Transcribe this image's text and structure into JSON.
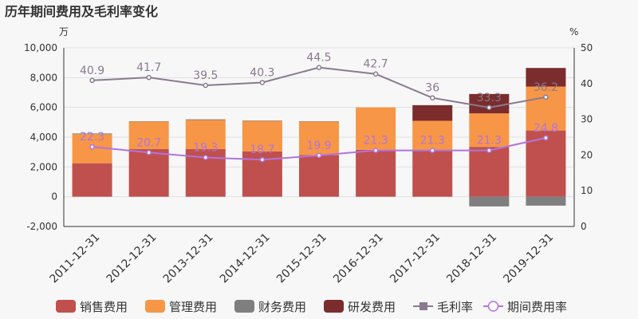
{
  "chart_data": {
    "type": "bar",
    "title": "历年期间费用及毛利率变化",
    "left_unit": "万",
    "right_unit": "%",
    "categories": [
      "2011-12-31",
      "2012-12-31",
      "2013-12-31",
      "2014-12-31",
      "2015-12-31",
      "2016-12-31",
      "2017-12-31",
      "2018-12-31",
      "2019-12-31"
    ],
    "ylim_left": [
      -2000,
      10000
    ],
    "yticks_left": [
      "-2,000",
      "0",
      "2,000",
      "4,000",
      "6,000",
      "8,000",
      "10,000"
    ],
    "ylim_right": [
      0,
      50
    ],
    "yticks_right": [
      "0",
      "10",
      "20",
      "30",
      "40",
      "50"
    ],
    "bar_series": [
      {
        "name": "销售费用",
        "color": "#c0504d",
        "values": [
          2250,
          3200,
          3200,
          3050,
          2800,
          3150,
          3100,
          3350,
          4450
        ]
      },
      {
        "name": "管理费用",
        "color": "#f79646",
        "values": [
          1950,
          1850,
          1950,
          2050,
          2250,
          2850,
          2000,
          2250,
          2950
        ]
      },
      {
        "name": "财务费用",
        "color": "#7f7f7f",
        "values": [
          50,
          20,
          50,
          20,
          20,
          0,
          0,
          -650,
          -600
        ]
      },
      {
        "name": "研发费用",
        "color": "#7b2c2c",
        "values": [
          0,
          0,
          0,
          0,
          0,
          0,
          1050,
          1300,
          1250
        ]
      }
    ],
    "line_series": [
      {
        "name": "毛利率",
        "color": "#8a7a8f",
        "values": [
          40.9,
          41.7,
          39.5,
          40.3,
          44.5,
          42.7,
          36,
          33.3,
          36.2
        ]
      },
      {
        "name": "期间费用率",
        "color": "#b273e0",
        "values": [
          22.3,
          20.7,
          19.3,
          18.7,
          19.9,
          21.3,
          21.3,
          21.3,
          24.8
        ]
      }
    ],
    "grid": true,
    "legend_position": "bottom"
  }
}
